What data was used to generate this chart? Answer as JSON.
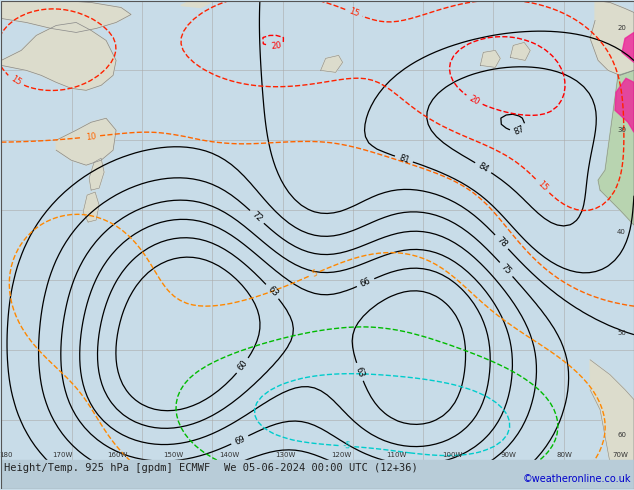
{
  "title_left": "Height/Temp. 925 hPa [gpdm] ECMWF",
  "title_right": "We 05-06-2024 00:00 UTC (12+36)",
  "credit": "©weatheronline.co.uk",
  "bg_color": "#c8dce8",
  "land_color": "#dcdccc",
  "land_color2": "#b8d4b0",
  "border_color": "#888888",
  "grid_color": "#aaaaaa",
  "bottom_bar_color": "#b8ccd8",
  "bottom_text_color": "#222222",
  "credit_color": "#0000cc",
  "font_size_title": 7.5,
  "font_size_credit": 7,
  "contour_lw": 0.9,
  "temp_lw": 1.0
}
